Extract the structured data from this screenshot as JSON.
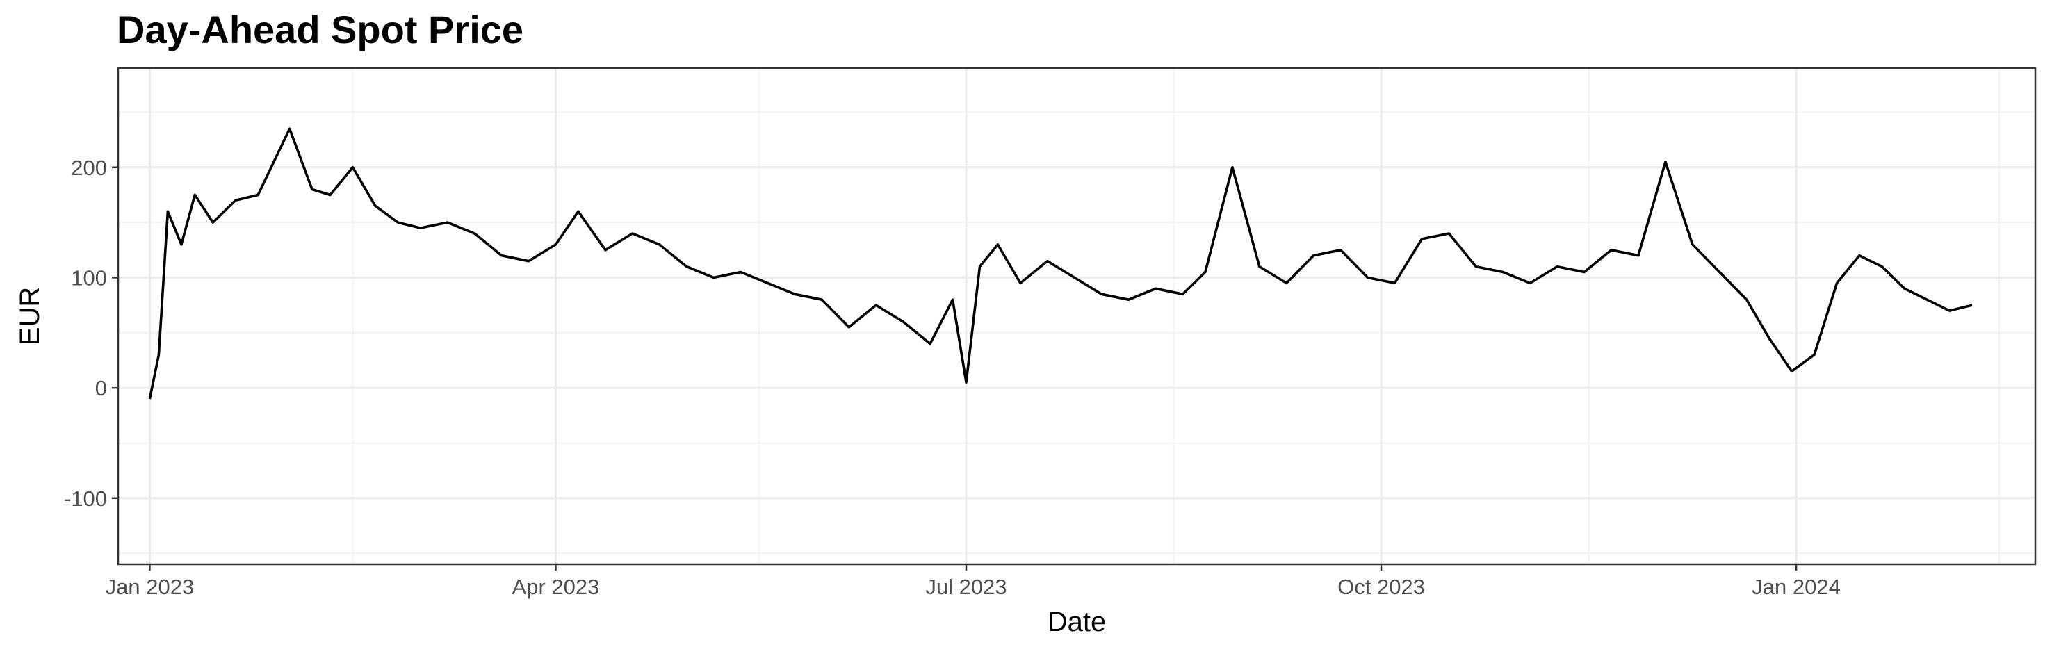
{
  "chart_data": {
    "type": "line",
    "title": "Day-Ahead Spot Price",
    "xlabel": "Date",
    "ylabel": "EUR",
    "grid": true,
    "legend": "none",
    "x_type": "date",
    "xlim": [
      "2022-12-25",
      "2024-02-23"
    ],
    "ylim": [
      -160,
      290
    ],
    "x_ticks": [
      {
        "date": "2023-01-01",
        "label": "Jan 2023"
      },
      {
        "date": "2023-04-01",
        "label": "Apr 2023"
      },
      {
        "date": "2023-07-01",
        "label": "Jul 2023"
      },
      {
        "date": "2023-10-01",
        "label": "Oct 2023"
      },
      {
        "date": "2024-01-01",
        "label": "Jan 2024"
      }
    ],
    "x_minor_ticks": [
      "2023-02-15",
      "2023-05-16",
      "2023-08-16",
      "2023-11-16",
      "2024-02-15"
    ],
    "y_ticks": [
      {
        "value": -100,
        "label": "-100"
      },
      {
        "value": 0,
        "label": "0"
      },
      {
        "value": 100,
        "label": "100"
      },
      {
        "value": 200,
        "label": "200"
      }
    ],
    "y_minor_ticks": [
      -150,
      -50,
      50,
      150,
      250
    ],
    "series": [
      {
        "color": "#000000",
        "x": [
          "2023-01-01",
          "2023-01-03",
          "2023-01-05",
          "2023-01-08",
          "2023-01-11",
          "2023-01-15",
          "2023-01-20",
          "2023-01-25",
          "2023-02-01",
          "2023-02-06",
          "2023-02-10",
          "2023-02-15",
          "2023-02-20",
          "2023-02-25",
          "2023-03-02",
          "2023-03-08",
          "2023-03-14",
          "2023-03-20",
          "2023-03-26",
          "2023-04-01",
          "2023-04-06",
          "2023-04-12",
          "2023-04-18",
          "2023-04-24",
          "2023-04-30",
          "2023-05-06",
          "2023-05-12",
          "2023-05-18",
          "2023-05-24",
          "2023-05-30",
          "2023-06-05",
          "2023-06-11",
          "2023-06-17",
          "2023-06-23",
          "2023-06-28",
          "2023-07-01",
          "2023-07-04",
          "2023-07-08",
          "2023-07-13",
          "2023-07-19",
          "2023-07-25",
          "2023-07-31",
          "2023-08-06",
          "2023-08-12",
          "2023-08-18",
          "2023-08-23",
          "2023-08-29",
          "2023-09-04",
          "2023-09-10",
          "2023-09-16",
          "2023-09-22",
          "2023-09-28",
          "2023-10-04",
          "2023-10-10",
          "2023-10-16",
          "2023-10-22",
          "2023-10-28",
          "2023-11-03",
          "2023-11-09",
          "2023-11-15",
          "2023-11-21",
          "2023-11-27",
          "2023-12-03",
          "2023-12-09",
          "2023-12-15",
          "2023-12-21",
          "2023-12-26",
          "2023-12-31",
          "2024-01-05",
          "2024-01-10",
          "2024-01-15",
          "2024-01-20",
          "2024-01-25",
          "2024-01-30",
          "2024-02-04",
          "2024-02-09"
        ],
        "values": [
          -10,
          30,
          160,
          130,
          175,
          150,
          170,
          175,
          235,
          180,
          175,
          200,
          165,
          150,
          145,
          150,
          140,
          120,
          115,
          130,
          160,
          125,
          140,
          130,
          110,
          100,
          105,
          95,
          85,
          80,
          55,
          75,
          60,
          40,
          80,
          5,
          110,
          130,
          95,
          115,
          100,
          85,
          80,
          90,
          85,
          105,
          200,
          110,
          95,
          120,
          125,
          100,
          95,
          135,
          140,
          110,
          105,
          95,
          110,
          105,
          125,
          120,
          205,
          130,
          105,
          80,
          45,
          15,
          30,
          95,
          120,
          110,
          90,
          80,
          70,
          75
        ]
      }
    ]
  }
}
